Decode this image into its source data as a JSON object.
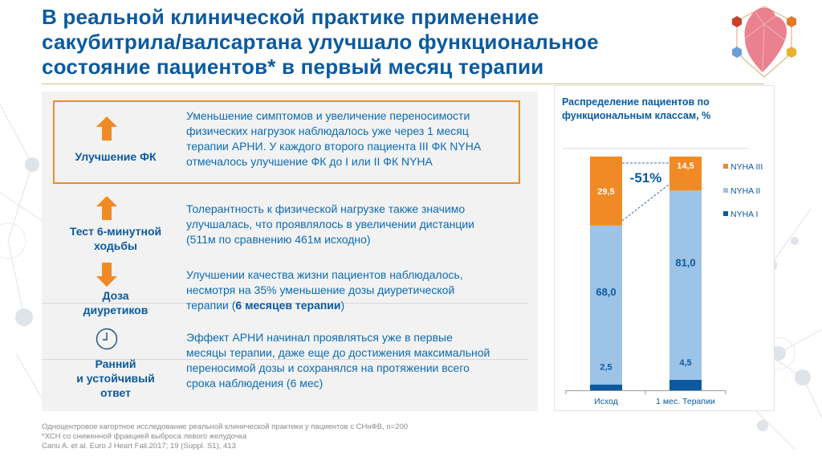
{
  "title": {
    "line1": "В реальной клинической практике применение",
    "line2": "сакубитрила/валсартана улучшало функциональное",
    "line3": "состояние пациентов*  в первый месяц терапии"
  },
  "rows": [
    {
      "icon": "arrow-up-icon",
      "label_lines": [
        "Улучшение ФК"
      ],
      "desc_lines": [
        "Уменьшение симптомов и увеличение переносимости",
        "физических нагрузок наблюдалось уже через 1 месяц",
        "терапии АРНИ. У каждого второго пациента III ФК NYHA",
        "отмечалось улучшение ФК до I или II ФК NYHA"
      ]
    },
    {
      "icon": "arrow-up-icon",
      "label_lines": [
        "Тест 6-минутной",
        "ходьбы"
      ],
      "desc_lines": [
        "Толерантность к физической нагрузке также значимо",
        "улучшалась, что проявлялось в увеличении дистанции",
        "(511м по сравнению 461м исходно)"
      ]
    },
    {
      "icon": "arrow-down-icon",
      "label_lines": [
        "Доза",
        "диуретиков"
      ],
      "desc_lines": [
        "Улучшении качества жизни пациентов наблюдалось,",
        "несмотря на 35% уменьшение дозы диуретической"
      ],
      "desc_last_prefix": "терапии (",
      "desc_last_bold": "6 месяцев терапии",
      "desc_last_suffix": ")"
    },
    {
      "icon": "clock-icon",
      "label_lines": [
        "Ранний",
        "и устойчивый",
        "ответ"
      ],
      "desc_lines": [
        "Эффект АРНИ начинал проявляться уже в первые",
        "месяцы терапии, даже еще до достижения максимальной",
        "переносимой дозы и сохранялся на протяжении всего",
        "срока наблюдения (6 мес)"
      ]
    }
  ],
  "colors": {
    "accent_blue": "#0b5aa0",
    "orange": "#f08a24",
    "light_blue": "#9dc3e6",
    "dark_blue": "#0b5aa0"
  },
  "chart_data": {
    "type": "bar",
    "stacked": true,
    "title": "Распределение пациентов по функциональным классам, %",
    "title_lines": [
      "Распределение пациентов по",
      "функциональным классам, %"
    ],
    "categories": [
      "Исход",
      "1 мес. Терапии"
    ],
    "series": [
      {
        "name": "NYHA I",
        "color": "#0b5aa0",
        "values": [
          2.5,
          4.5
        ],
        "labels": [
          "2,5",
          "4,5"
        ]
      },
      {
        "name": "NYHA II",
        "color": "#9dc3e6",
        "values": [
          68.0,
          81.0
        ],
        "labels": [
          "68,0",
          "81,0"
        ]
      },
      {
        "name": "NYHA III",
        "color": "#f08a24",
        "values": [
          29.5,
          14.5
        ],
        "labels": [
          "29,5",
          "14,5"
        ]
      }
    ],
    "legend_order": [
      "NYHA III",
      "NYHA II",
      "NYHA I"
    ],
    "legend_position": "right",
    "annotation": "-51%",
    "ylim": [
      0,
      100
    ],
    "xlabel": "",
    "ylabel": ""
  },
  "footer": {
    "line1": "Одноцентровое кагортное исследование реальной клинической практики у пациентов с СНнФВ, n=200",
    "line2": "*ХСН со сниженной фракцией выброса левого желудочка",
    "line3": "Canu A. et al. Euro J  Heart Fail.2017; 19 (Suppl. S1), 413"
  }
}
